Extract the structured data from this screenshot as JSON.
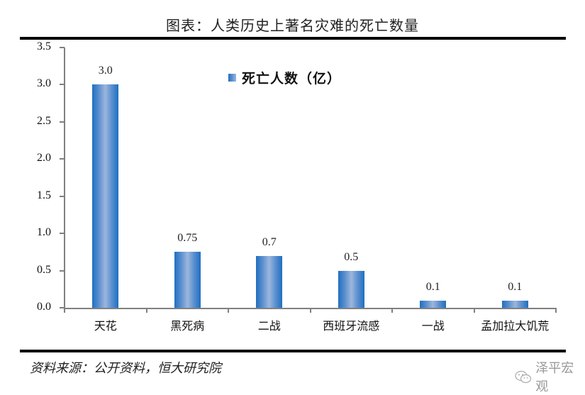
{
  "title": "图表：人类历史上著名灾难的死亡数量",
  "legend": {
    "label": "死亡人数（亿）",
    "color": "#2e75c8"
  },
  "source": "资料来源：公开资料，恒大研究院",
  "watermark": {
    "icon": "wechat-icon",
    "text": "泽平宏观"
  },
  "y_ticks": [
    "3.5",
    "3.0",
    "2.5",
    "2.0",
    "1.5",
    "1.0",
    "0.5",
    "0.0"
  ],
  "bars": [
    {
      "category": "天花",
      "value": 3.0,
      "label": "3.0"
    },
    {
      "category": "黑死病",
      "value": 0.75,
      "label": "0.75"
    },
    {
      "category": "二战",
      "value": 0.7,
      "label": "0.7"
    },
    {
      "category": "西班牙流感",
      "value": 0.5,
      "label": "0.5"
    },
    {
      "category": "一战",
      "value": 0.1,
      "label": "0.1"
    },
    {
      "category": "孟加拉大饥荒",
      "value": 0.1,
      "label": "0.1"
    }
  ],
  "chart_data": {
    "type": "bar",
    "title": "图表：人类历史上著名灾难的死亡数量",
    "categories": [
      "天花",
      "黑死病",
      "二战",
      "西班牙流感",
      "一战",
      "孟加拉大饥荒"
    ],
    "series": [
      {
        "name": "死亡人数（亿）",
        "values": [
          3.0,
          0.75,
          0.7,
          0.5,
          0.1,
          0.1
        ]
      }
    ],
    "data_labels": [
      "3.0",
      "0.75",
      "0.7",
      "0.5",
      "0.1",
      "0.1"
    ],
    "xlabel": "",
    "ylabel": "",
    "ylim": [
      0,
      3.5
    ],
    "y_tick_step": 0.5,
    "grid": false,
    "legend_position": "top-center-inside",
    "source": "资料来源：公开资料，恒大研究院"
  }
}
